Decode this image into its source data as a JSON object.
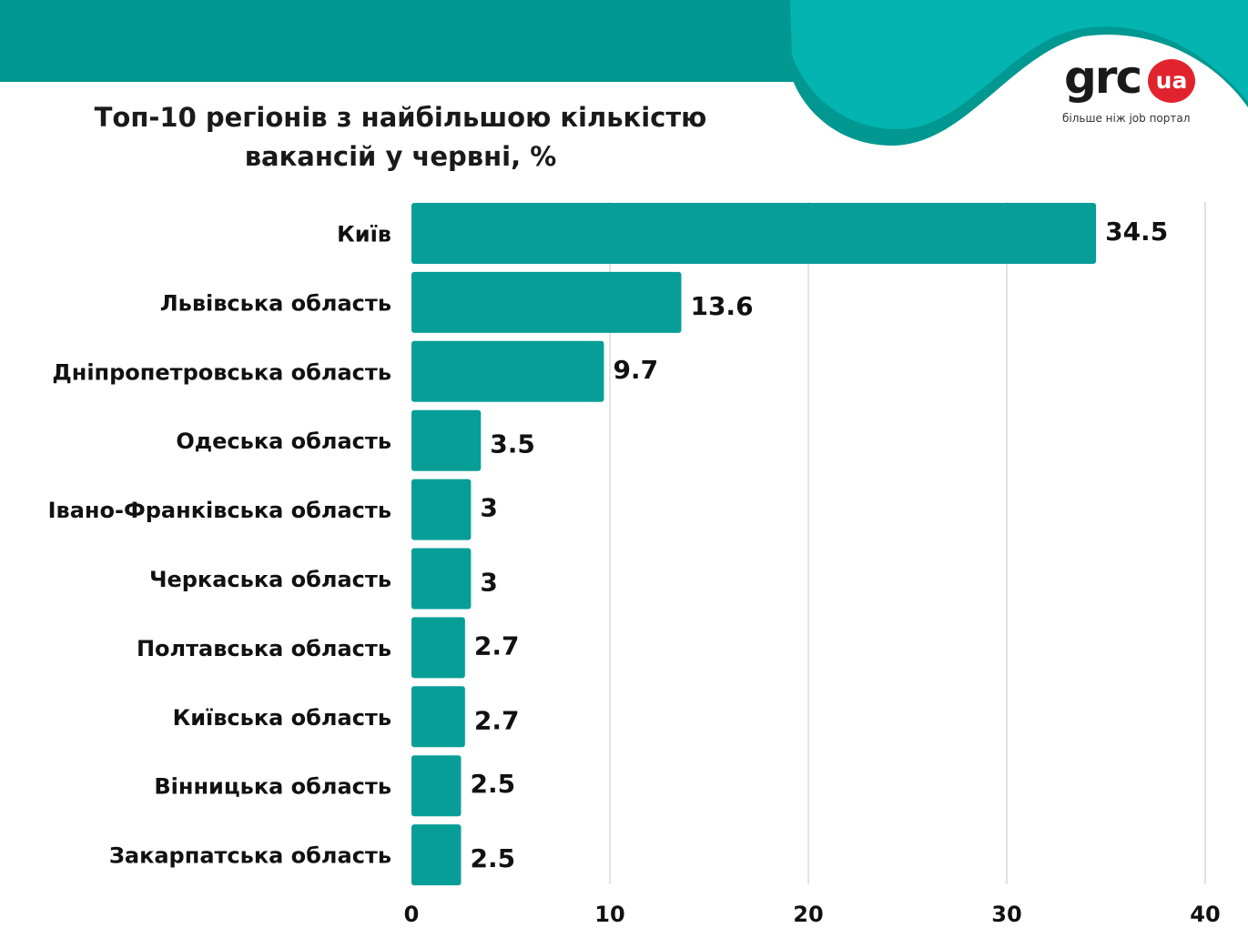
{
  "brand": {
    "logo_text": "grc",
    "logo_badge": "ua",
    "tagline": "більше ніж job портал",
    "colors": {
      "header_dark": "#009890",
      "header_light": "#02b3b0",
      "badge": "#e1232e"
    }
  },
  "chart_data": {
    "type": "bar",
    "orientation": "horizontal",
    "title": "Топ-10 регіонів з найбільшою кількістю вакансій у червні, %",
    "categories": [
      "Київ",
      "Львівська область",
      "Дніпропетровська область",
      "Одеська область",
      "Івано-Франківська область",
      "Черкаська область",
      "Полтавська область",
      "Київська область",
      "Вінницька область",
      "Закарпатська область"
    ],
    "values": [
      34.5,
      13.6,
      9.7,
      3.5,
      3,
      3,
      2.7,
      2.7,
      2.5,
      2.5
    ],
    "value_labels": [
      "34.5",
      "13.6",
      "9.7",
      "3.5",
      "3",
      "3",
      "2.7",
      "2.7",
      "2.5",
      "2.5"
    ],
    "xlim": [
      0,
      40
    ],
    "x_ticks": [
      0,
      10,
      20,
      30,
      40
    ],
    "xlabel": "",
    "ylabel": "",
    "grid": true,
    "legend": "none",
    "bar_color": "#079e98",
    "grid_color": "#d9d9d9"
  }
}
